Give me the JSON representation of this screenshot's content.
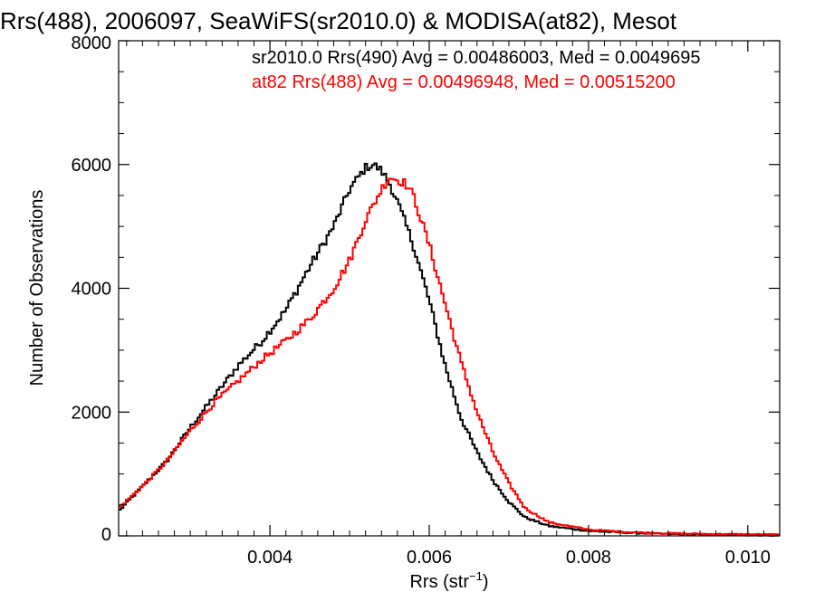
{
  "chart_data": {
    "type": "line",
    "title": "Rrs(488), 2006097, SeaWiFS(sr2010.0) & MODISA(at82), Mesot",
    "xlabel_main": "Rrs (str",
    "xlabel_sup": "−1",
    "xlabel_close": ")",
    "ylabel": "Number of Observations",
    "xlim": [
      0.0021,
      0.0104
    ],
    "ylim": [
      0,
      8000
    ],
    "x_ticks": [
      0.004,
      0.006,
      0.008,
      0.01
    ],
    "x_tick_labels": [
      "0.004",
      "0.006",
      "0.008",
      "0.010"
    ],
    "y_ticks": [
      0,
      2000,
      4000,
      6000,
      8000
    ],
    "y_tick_labels": [
      "0",
      "2000",
      "4000",
      "6000",
      "8000"
    ],
    "grid": false,
    "legend_placement": "top-right",
    "series": [
      {
        "name": "sr2010.0 Rrs(490) Avg = 0.00486003, Med = 0.0049695",
        "color": "#000000",
        "x": [
          0.0021,
          0.0024,
          0.0027,
          0.003,
          0.0033,
          0.0036,
          0.0039,
          0.0042,
          0.0045,
          0.0048,
          0.005,
          0.0052,
          0.0053,
          0.0054,
          0.0055,
          0.0056,
          0.0058,
          0.006,
          0.0062,
          0.0064,
          0.0066,
          0.0068,
          0.007,
          0.0072,
          0.0075,
          0.008,
          0.0085,
          0.009,
          0.0095,
          0.0104
        ],
        "y": [
          400,
          800,
          1200,
          1750,
          2250,
          2750,
          3150,
          3650,
          4350,
          5000,
          5600,
          5950,
          6000,
          5900,
          5700,
          5400,
          4700,
          3800,
          2750,
          1900,
          1350,
          900,
          550,
          300,
          160,
          80,
          50,
          30,
          20,
          10
        ]
      },
      {
        "name": "at82 Rrs(488) Avg = 0.00496948, Med = 0.00515200",
        "color": "#ff0000",
        "x": [
          0.0021,
          0.0024,
          0.0027,
          0.003,
          0.0033,
          0.0036,
          0.0039,
          0.0042,
          0.0045,
          0.0048,
          0.005,
          0.0052,
          0.0054,
          0.0055,
          0.0056,
          0.0057,
          0.0058,
          0.006,
          0.0062,
          0.0064,
          0.0066,
          0.0068,
          0.007,
          0.0072,
          0.0075,
          0.008,
          0.0085,
          0.009,
          0.0095,
          0.0104
        ],
        "y": [
          450,
          800,
          1200,
          1700,
          2150,
          2500,
          2850,
          3150,
          3500,
          4000,
          4450,
          5100,
          5600,
          5800,
          5750,
          5700,
          5500,
          4700,
          3750,
          2800,
          2000,
          1350,
          850,
          450,
          220,
          100,
          60,
          40,
          30,
          20
        ]
      }
    ]
  }
}
